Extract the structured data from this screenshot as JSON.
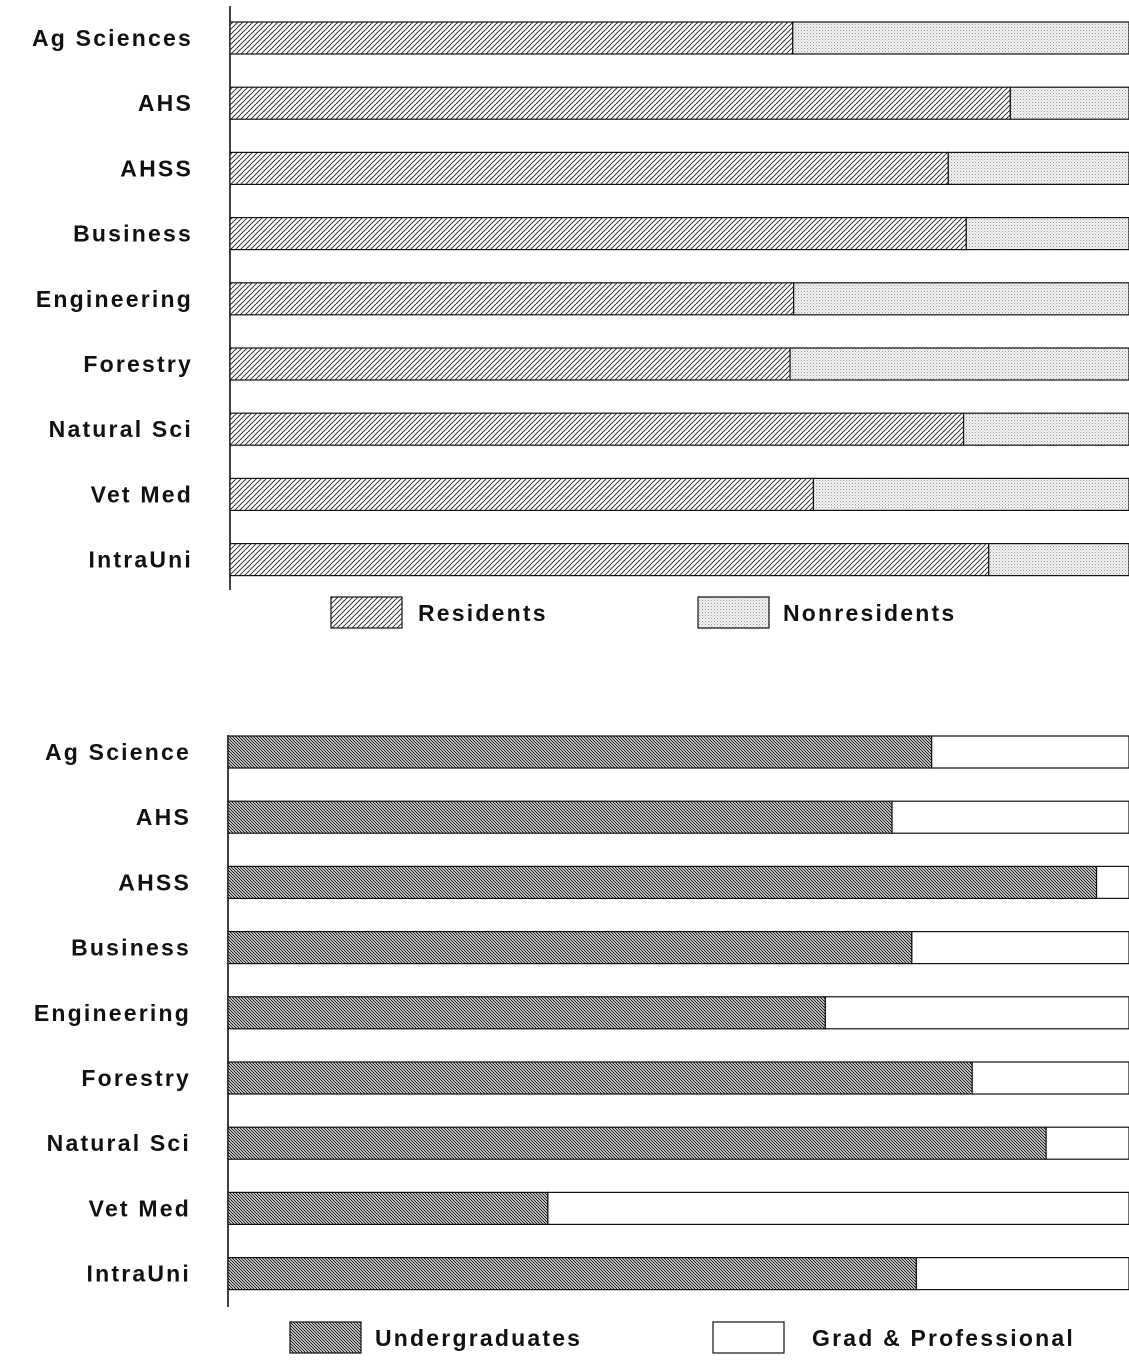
{
  "chart_data": [
    {
      "type": "bar",
      "orientation": "horizontal",
      "stacked": "percent",
      "categories": [
        "Ag Sciences",
        "AHS",
        "AHSS",
        "Business",
        "Engineering",
        "Forestry",
        "Natural Sci",
        "Vet Med",
        "IntraUni"
      ],
      "series": [
        {
          "name": "Residents",
          "values": [
            62.6,
            86.8,
            79.9,
            81.9,
            62.7,
            62.3,
            81.6,
            64.9,
            84.4
          ]
        },
        {
          "name": "Nonresidents",
          "values": [
            37.4,
            13.2,
            20.1,
            18.1,
            37.3,
            37.7,
            18.4,
            35.1,
            15.6
          ]
        }
      ],
      "xlim": [
        0,
        100
      ],
      "legend": "bottom",
      "grid": false
    },
    {
      "type": "bar",
      "orientation": "horizontal",
      "stacked": "percent",
      "categories": [
        "Ag Science",
        "AHS",
        "AHSS",
        "Business",
        "Engineering",
        "Forestry",
        "Natural Sci",
        "Vet Med",
        "IntraUni"
      ],
      "series": [
        {
          "name": "Undergraduates",
          "values": [
            78.1,
            73.7,
            96.4,
            75.9,
            66.3,
            82.6,
            90.8,
            35.5,
            76.4
          ]
        },
        {
          "name": "Grad & Professional",
          "values": [
            21.9,
            26.3,
            3.6,
            24.1,
            33.7,
            17.4,
            9.2,
            64.5,
            23.6
          ]
        }
      ],
      "xlim": [
        0,
        100
      ],
      "legend": "bottom",
      "grid": false
    }
  ],
  "styles": {
    "residents": "diagonal-hatch",
    "nonresidents": "fine-dot-stipple",
    "undergraduates": "dense-diagonal-hatch",
    "grad_professional": "solid-white",
    "ink_color": "#111111"
  }
}
